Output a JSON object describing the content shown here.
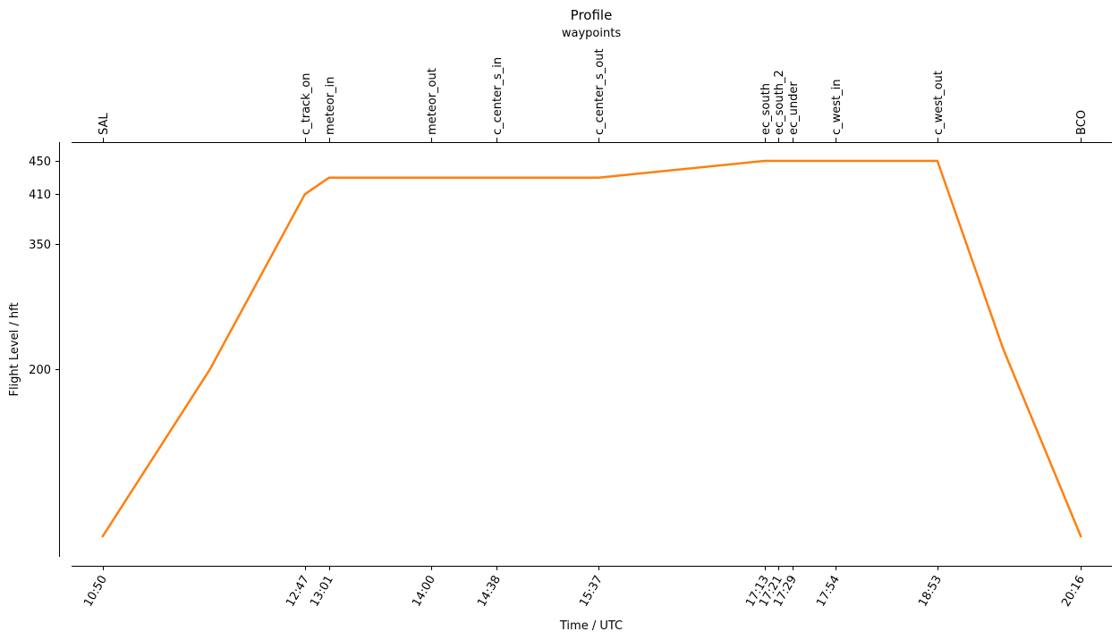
{
  "chart_data": {
    "type": "line",
    "title": "Profile",
    "subtitle": "waypoints",
    "xlabel": "Time / UTC",
    "ylabel": "Flight Level / hft",
    "ylim": [
      0,
      465
    ],
    "xlim": [
      "10:32",
      "20:34"
    ],
    "y_ticks": [
      200,
      350,
      410,
      450
    ],
    "x_ticks": [
      "10:50",
      "12:47",
      "13:01",
      "14:00",
      "14:38",
      "15:37",
      "17:13",
      "17:21",
      "17:29",
      "17:54",
      "18:53",
      "20:16"
    ],
    "waypoints": [
      {
        "name": "SAL",
        "time": "10:50"
      },
      {
        "name": "c_track_on",
        "time": "12:47"
      },
      {
        "name": "meteor_in",
        "time": "13:01"
      },
      {
        "name": "meteor_out",
        "time": "14:00"
      },
      {
        "name": "c_center_s_in",
        "time": "14:38"
      },
      {
        "name": "c_center_s_out",
        "time": "15:37"
      },
      {
        "name": "ec_south",
        "time": "17:13"
      },
      {
        "name": "ec_south_2",
        "time": "17:21"
      },
      {
        "name": "ec_under",
        "time": "17:29"
      },
      {
        "name": "c_west_in",
        "time": "17:54"
      },
      {
        "name": "c_west_out",
        "time": "18:53"
      },
      {
        "name": "BCO",
        "time": "20:16"
      }
    ],
    "series": [
      {
        "color": "#ff7f0e",
        "points": [
          {
            "x": "10:50",
            "y": 0
          },
          {
            "x": "11:52",
            "y": 200
          },
          {
            "x": "12:47",
            "y": 410
          },
          {
            "x": "13:01",
            "y": 430
          },
          {
            "x": "14:00",
            "y": 430
          },
          {
            "x": "14:38",
            "y": 430
          },
          {
            "x": "15:37",
            "y": 430
          },
          {
            "x": "17:13",
            "y": 450
          },
          {
            "x": "17:21",
            "y": 450
          },
          {
            "x": "17:29",
            "y": 450
          },
          {
            "x": "17:54",
            "y": 450
          },
          {
            "x": "18:53",
            "y": 450
          },
          {
            "x": "19:31",
            "y": 225
          },
          {
            "x": "20:16",
            "y": 0
          }
        ]
      }
    ],
    "grid": false,
    "legend": "none"
  }
}
